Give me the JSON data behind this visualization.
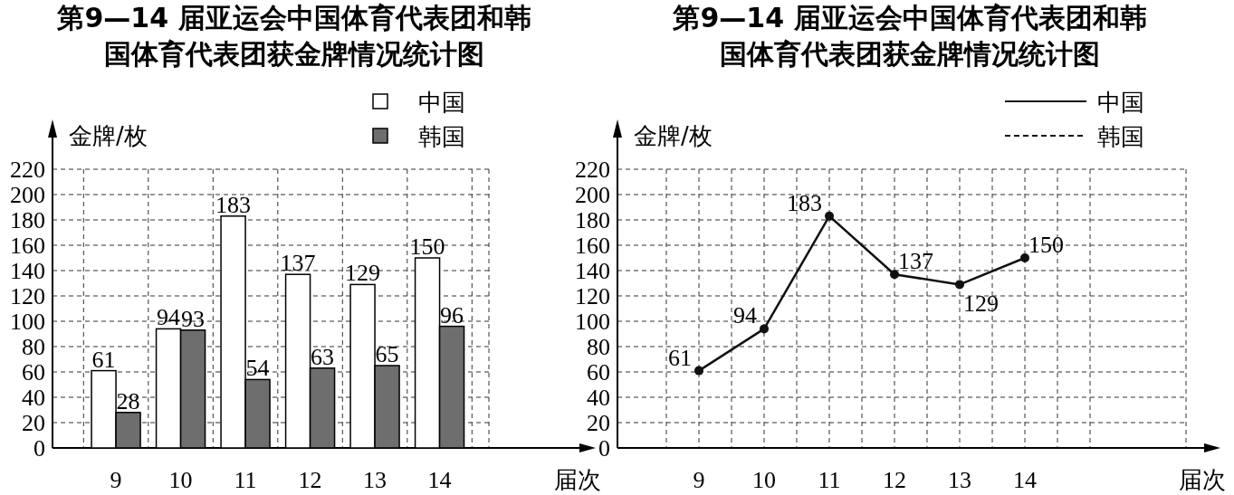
{
  "chart_data": [
    {
      "type": "bar",
      "title": "第9—14 届亚运会中国体育代表团和韩国体育代表团获金牌情况统计图",
      "xlabel": "届次",
      "ylabel": "金牌/枚",
      "categories": [
        "9",
        "10",
        "11",
        "12",
        "13",
        "14"
      ],
      "series": [
        {
          "name": "中国",
          "color": "#ffffff",
          "values": [
            61,
            94,
            183,
            137,
            129,
            150
          ]
        },
        {
          "name": "韩国",
          "color": "#6e6e6e",
          "values": [
            28,
            93,
            54,
            63,
            65,
            96
          ]
        }
      ],
      "ylim": [
        0,
        220
      ],
      "yticks": [
        0,
        20,
        40,
        60,
        80,
        100,
        120,
        140,
        160,
        180,
        200,
        220
      ],
      "grid": true,
      "legend": "top right",
      "data_labels": true
    },
    {
      "type": "line",
      "title": "第9—14 届亚运会中国体育代表团和韩国体育代表团获金牌情况统计图",
      "xlabel": "届次",
      "ylabel": "金牌/枚",
      "categories": [
        "9",
        "10",
        "11",
        "12",
        "13",
        "14"
      ],
      "series": [
        {
          "name": "中国",
          "color": "#111111",
          "line_style": "solid",
          "values": [
            61,
            94,
            183,
            137,
            129,
            150
          ]
        },
        {
          "name": "韩国",
          "color": "#111111",
          "line_style": "dashed",
          "values": [
            null,
            null,
            null,
            null,
            null,
            null
          ]
        }
      ],
      "ylim": [
        0,
        220
      ],
      "yticks": [
        0,
        20,
        40,
        60,
        80,
        100,
        120,
        140,
        160,
        180,
        200,
        220
      ],
      "grid": true,
      "legend": "top right",
      "marker": "circle",
      "data_labels": true
    }
  ]
}
